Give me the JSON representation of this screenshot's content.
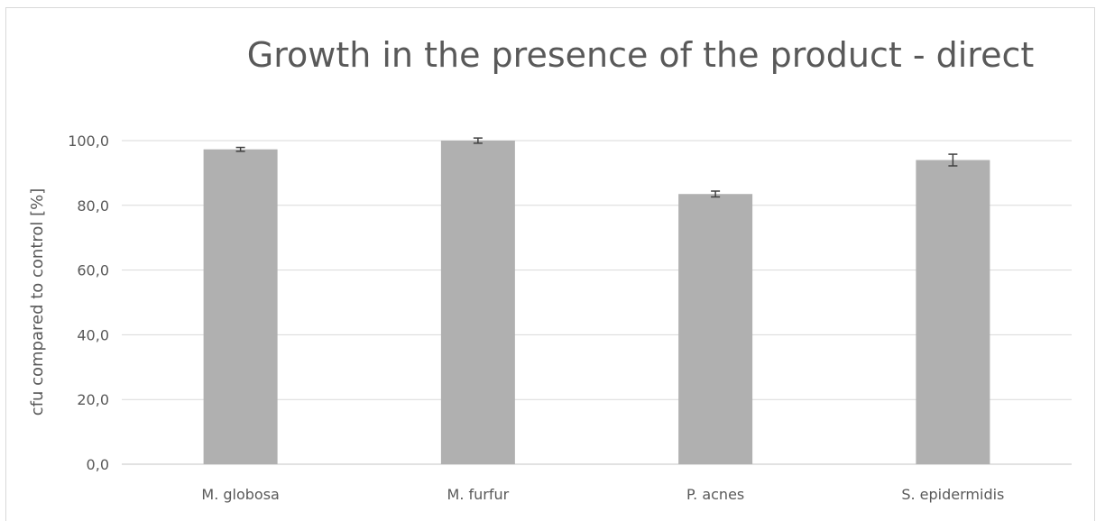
{
  "chart_data": {
    "type": "bar",
    "title": "Growth in the presence of the product - direct",
    "xlabel": "",
    "ylabel": "cfu compared to control [%]",
    "categories": [
      "M. globosa",
      "M. furfur",
      "P. acnes",
      "S. epidermidis"
    ],
    "values": [
      97.3,
      100.0,
      83.5,
      94.0
    ],
    "errors": [
      0.6,
      0.8,
      0.9,
      1.8
    ],
    "ylim": [
      0,
      100
    ],
    "yticks": [
      "0,0",
      "20,0",
      "40,0",
      "60,0",
      "80,0",
      "100,0"
    ],
    "grid": true,
    "legend": "none",
    "bar_color": "#b0b0b0",
    "grid_color": "#d9d9d9",
    "text_color": "#595959",
    "error_color": "#404040"
  }
}
